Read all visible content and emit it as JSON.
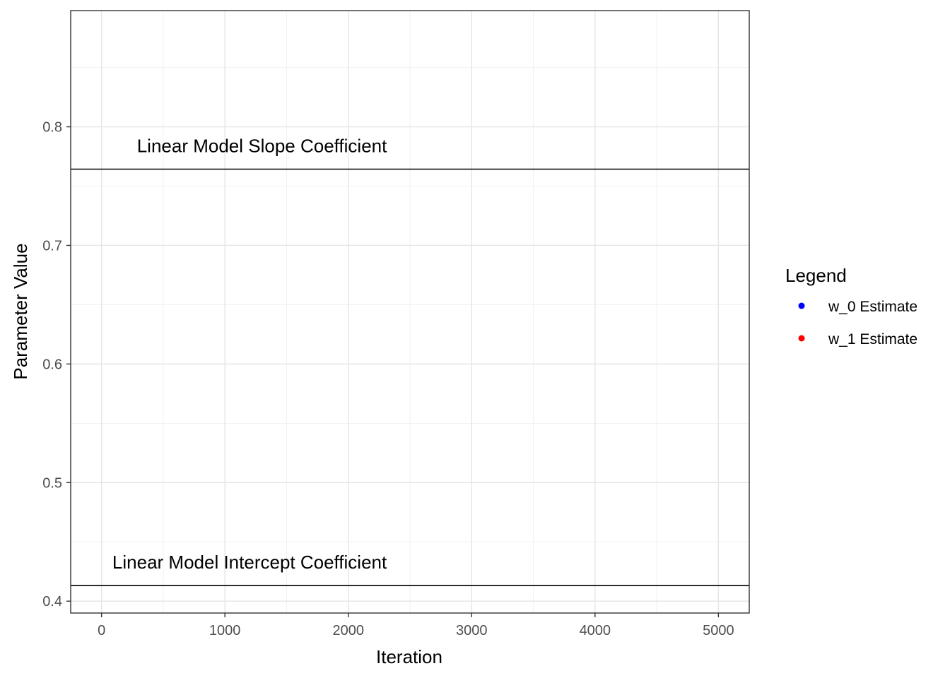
{
  "chart_data": {
    "type": "line",
    "xlabel": "Iteration",
    "ylabel": "Parameter Value",
    "xlim": [
      -250,
      5250
    ],
    "ylim": [
      0.39,
      0.898
    ],
    "x_ticks": [
      0,
      1000,
      2000,
      3000,
      4000,
      5000
    ],
    "x_tick_labels": [
      "0",
      "1000",
      "2000",
      "3000",
      "4000",
      "5000"
    ],
    "y_ticks": [
      0.4,
      0.5,
      0.6,
      0.7,
      0.8
    ],
    "y_tick_labels": [
      "0.4",
      "0.5",
      "0.6",
      "0.7",
      "0.8"
    ],
    "grid": true,
    "reference_lines": [
      {
        "y": 0.7643,
        "label": "Linear Model Slope Coefficient",
        "label_x": 1300
      },
      {
        "y": 0.4131,
        "label": "Linear Model Intercept Coefficient",
        "label_x": 1200
      }
    ],
    "series": [
      {
        "name": "w_0 Estimate",
        "color": "#0000ff",
        "x": [],
        "y": []
      },
      {
        "name": "w_1 Estimate",
        "color": "#ff0000",
        "x": [],
        "y": []
      }
    ],
    "legend": {
      "title": "Legend",
      "position": "right"
    }
  }
}
